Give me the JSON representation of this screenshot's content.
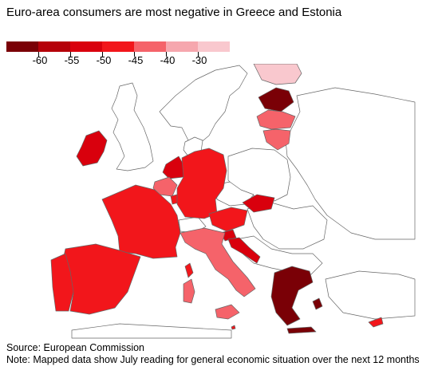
{
  "title": "Euro-area consumers are most negative in Greece and Estonia",
  "legend": {
    "colors": [
      "#7a0006",
      "#b50009",
      "#d9000d",
      "#f2161b",
      "#f5636a",
      "#f6a7ae",
      "#f9c8ce"
    ],
    "labels": [
      "-60",
      "-55",
      "-50",
      "-45",
      "-40",
      "-30"
    ]
  },
  "regions": {
    "greece": "#7a0006",
    "estonia": "#7a0006",
    "finland": "#f9c8ce",
    "latvia": "#f5636a",
    "lithuania": "#f5636a",
    "ireland": "#d9000d",
    "netherlands": "#d9000d",
    "belgium": "#f5636a",
    "luxembourg": "#f2161b",
    "germany": "#f2161b",
    "france": "#f2161b",
    "spain": "#f2161b",
    "portugal": "#f2161b",
    "austria": "#f2161b",
    "slovakia": "#d9000d",
    "slovenia": "#d9000d",
    "croatia": "#d9000d",
    "italy": "#f5636a",
    "cyprus": "#f2161b",
    "malta": "#f2161b",
    "non_euro": "#ffffff"
  },
  "footer": {
    "source": "Source: European Commission",
    "note": "Note: Mapped data show July reading for general economic situation over the next 12 months"
  }
}
